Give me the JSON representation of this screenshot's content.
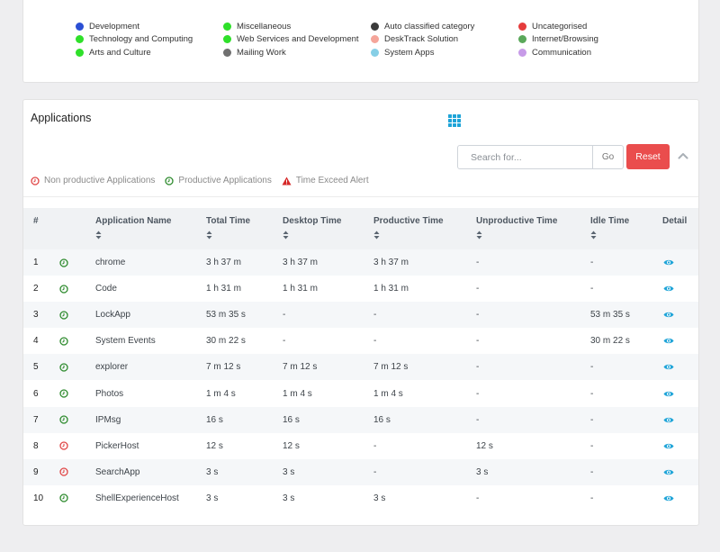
{
  "legend": {
    "columns": [
      [
        {
          "label": "Development",
          "color": "#2b4fd4"
        },
        {
          "label": "Technology and Computing",
          "color": "#2fe02a"
        },
        {
          "label": "Arts and Culture",
          "color": "#2fe02a"
        }
      ],
      [
        {
          "label": "Miscellaneous",
          "color": "#2fe02a"
        },
        {
          "label": "Web Services and Development",
          "color": "#2fe02a"
        },
        {
          "label": "Mailing Work",
          "color": "#707070"
        }
      ],
      [
        {
          "label": "Auto classified category",
          "color": "#3a3a3a"
        },
        {
          "label": "DeskTrack Solution",
          "color": "#f5a59a"
        },
        {
          "label": "System Apps",
          "color": "#86cfe6"
        }
      ],
      [
        {
          "label": "Uncategorised",
          "color": "#e53c3c"
        },
        {
          "label": "Internet/Browsing",
          "color": "#5aa85a"
        },
        {
          "label": "Communication",
          "color": "#c79be8"
        }
      ]
    ]
  },
  "applications": {
    "title": "Applications",
    "search_placeholder": "Search for...",
    "go_label": "Go",
    "reset_label": "Reset",
    "filters": {
      "non_productive": "Non productive Applications",
      "productive": "Productive Applications",
      "time_exceed": "Time Exceed Alert"
    },
    "columns": {
      "index": "#",
      "name": "Application Name",
      "total": "Total Time",
      "desktop": "Desktop Time",
      "productive": "Productive Time",
      "unproductive": "Unproductive Time",
      "idle": "Idle Time",
      "detail": "Detail"
    },
    "rows": [
      {
        "index": "1",
        "status": "productive",
        "name": "chrome",
        "total": "3 h 37 m",
        "desktop": "3 h 37 m",
        "productive": "3 h 37 m",
        "unproductive": "-",
        "idle": "-"
      },
      {
        "index": "2",
        "status": "productive",
        "name": "Code",
        "total": "1 h 31 m",
        "desktop": "1 h 31 m",
        "productive": "1 h 31 m",
        "unproductive": "-",
        "idle": "-"
      },
      {
        "index": "3",
        "status": "productive",
        "name": "LockApp",
        "total": "53 m 35 s",
        "desktop": "-",
        "productive": "-",
        "unproductive": "-",
        "idle": "53 m 35 s"
      },
      {
        "index": "4",
        "status": "productive",
        "name": "System Events",
        "total": "30 m 22 s",
        "desktop": "-",
        "productive": "-",
        "unproductive": "-",
        "idle": "30 m 22 s"
      },
      {
        "index": "5",
        "status": "productive",
        "name": "explorer",
        "total": "7 m 12 s",
        "desktop": "7 m 12 s",
        "productive": "7 m 12 s",
        "unproductive": "-",
        "idle": "-"
      },
      {
        "index": "6",
        "status": "productive",
        "name": "Photos",
        "total": "1 m 4 s",
        "desktop": "1 m 4 s",
        "productive": "1 m 4 s",
        "unproductive": "-",
        "idle": "-"
      },
      {
        "index": "7",
        "status": "productive",
        "name": "IPMsg",
        "total": "16 s",
        "desktop": "16 s",
        "productive": "16 s",
        "unproductive": "-",
        "idle": "-"
      },
      {
        "index": "8",
        "status": "non_productive",
        "name": "PickerHost",
        "total": "12 s",
        "desktop": "12 s",
        "productive": "-",
        "unproductive": "12 s",
        "idle": "-"
      },
      {
        "index": "9",
        "status": "non_productive",
        "name": "SearchApp",
        "total": "3 s",
        "desktop": "3 s",
        "productive": "-",
        "unproductive": "3 s",
        "idle": "-"
      },
      {
        "index": "10",
        "status": "productive",
        "name": "ShellExperienceHost",
        "total": "3 s",
        "desktop": "3 s",
        "productive": "3 s",
        "unproductive": "-",
        "idle": "-"
      }
    ]
  },
  "colors": {
    "productive": "#2e8b2e",
    "non_productive": "#e04646",
    "alert": "#d62828",
    "accent": "#1fa4d8",
    "reset": "#ea4d4d"
  }
}
